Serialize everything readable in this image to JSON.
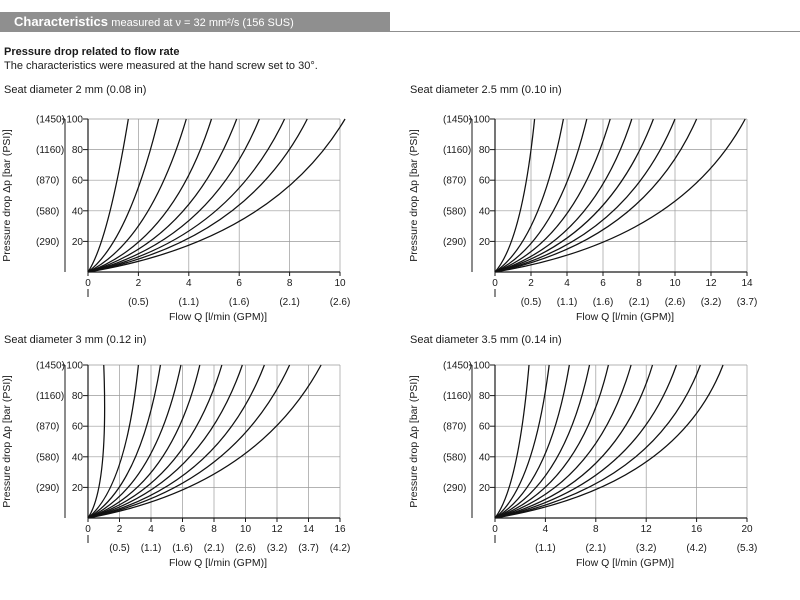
{
  "header": {
    "title": "Characteristics",
    "subtitle": "measured at ν = 32 mm²/s (156 SUS)"
  },
  "section": {
    "title": "Pressure drop related to flow rate",
    "description": "The characteristics were measured at the hand screw set to 30°."
  },
  "chart_data": [
    {
      "type": "line",
      "title": "Seat diameter 2 mm (0.08 in)",
      "xlabel": "Flow Q [l/min (GPM)]",
      "ylabel": "Pressure drop Δp [bar (PSI)]",
      "xlim": [
        0,
        10
      ],
      "ylim": [
        0,
        100
      ],
      "x_ticks": [
        0,
        2,
        4,
        6,
        8,
        10
      ],
      "x_gpm_ticks": [
        {
          "x": 2,
          "label": "(0.5)"
        },
        {
          "x": 4,
          "label": "(1.1)"
        },
        {
          "x": 6,
          "label": "(1.6)"
        },
        {
          "x": 8,
          "label": "(2.1)"
        },
        {
          "x": 10,
          "label": "(2.6)"
        }
      ],
      "y_ticks": [
        20,
        40,
        60,
        80,
        100
      ],
      "y_psi_labels": [
        "(290)",
        "(580)",
        "(870)",
        "(1160)",
        "(1450)"
      ],
      "grid": true,
      "series": [
        {
          "name": "curve 1",
          "x": [
            0,
            0.8,
            1.6
          ],
          "y": [
            0,
            35,
            100
          ]
        },
        {
          "name": "curve 2",
          "x": [
            0,
            1.5,
            2.8
          ],
          "y": [
            0,
            35,
            100
          ]
        },
        {
          "name": "curve 3",
          "x": [
            0,
            2.2,
            3.9
          ],
          "y": [
            0,
            35,
            100
          ]
        },
        {
          "name": "curve 4",
          "x": [
            0,
            2.9,
            4.9
          ],
          "y": [
            0,
            35,
            100
          ]
        },
        {
          "name": "curve 5",
          "x": [
            0,
            3.5,
            5.9
          ],
          "y": [
            0,
            35,
            100
          ]
        },
        {
          "name": "curve 6",
          "x": [
            0,
            4.1,
            6.8
          ],
          "y": [
            0,
            35,
            100
          ]
        },
        {
          "name": "curve 7",
          "x": [
            0,
            4.7,
            7.8
          ],
          "y": [
            0,
            35,
            100
          ]
        },
        {
          "name": "curve 8",
          "x": [
            0,
            5.3,
            8.7
          ],
          "y": [
            0,
            35,
            100
          ]
        },
        {
          "name": "curve 9",
          "x": [
            0,
            6.2,
            10.2
          ],
          "y": [
            0,
            35,
            100
          ]
        }
      ]
    },
    {
      "type": "line",
      "title": "Seat diameter 2.5 mm (0.10 in)",
      "xlabel": "Flow Q [l/min (GPM)]",
      "ylabel": "Pressure drop Δp [bar (PSI)]",
      "xlim": [
        0,
        14
      ],
      "ylim": [
        0,
        100
      ],
      "x_ticks": [
        0,
        2,
        4,
        6,
        8,
        10,
        12,
        14
      ],
      "x_gpm_ticks": [
        {
          "x": 2,
          "label": "(0.5)"
        },
        {
          "x": 4,
          "label": "(1.1)"
        },
        {
          "x": 6,
          "label": "(1.6)"
        },
        {
          "x": 8,
          "label": "(2.1)"
        },
        {
          "x": 10,
          "label": "(2.6)"
        },
        {
          "x": 12,
          "label": "(3.2)"
        },
        {
          "x": 14,
          "label": "(3.7)"
        }
      ],
      "y_ticks": [
        20,
        40,
        60,
        80,
        100
      ],
      "y_psi_labels": [
        "(290)",
        "(580)",
        "(870)",
        "(1160)",
        "(1450)"
      ],
      "grid": true,
      "series": [
        {
          "name": "curve 1",
          "x": [
            0,
            1.3,
            2.2
          ],
          "y": [
            0,
            35,
            100
          ]
        },
        {
          "name": "curve 2",
          "x": [
            0,
            2.2,
            3.8
          ],
          "y": [
            0,
            35,
            100
          ]
        },
        {
          "name": "curve 3",
          "x": [
            0,
            3.0,
            5.1
          ],
          "y": [
            0,
            35,
            100
          ]
        },
        {
          "name": "curve 4",
          "x": [
            0,
            3.8,
            6.4
          ],
          "y": [
            0,
            35,
            100
          ]
        },
        {
          "name": "curve 5",
          "x": [
            0,
            4.6,
            7.6
          ],
          "y": [
            0,
            35,
            100
          ]
        },
        {
          "name": "curve 6",
          "x": [
            0,
            5.3,
            8.8
          ],
          "y": [
            0,
            35,
            100
          ]
        },
        {
          "name": "curve 7",
          "x": [
            0,
            6.1,
            10.0
          ],
          "y": [
            0,
            35,
            100
          ]
        },
        {
          "name": "curve 8",
          "x": [
            0,
            6.9,
            11.2
          ],
          "y": [
            0,
            35,
            100
          ]
        },
        {
          "name": "curve 9",
          "x": [
            0,
            8.6,
            13.9
          ],
          "y": [
            0,
            35,
            100
          ]
        }
      ]
    },
    {
      "type": "line",
      "title": "Seat diameter 3 mm (0.12 in)",
      "xlabel": "Flow Q [l/min (GPM)]",
      "ylabel": "Pressure drop Δp [bar (PSI)]",
      "xlim": [
        0,
        16
      ],
      "ylim": [
        0,
        100
      ],
      "x_ticks": [
        0,
        2,
        4,
        6,
        8,
        10,
        12,
        14,
        16
      ],
      "x_gpm_ticks": [
        {
          "x": 2,
          "label": "(0.5)"
        },
        {
          "x": 4,
          "label": "(1.1)"
        },
        {
          "x": 6,
          "label": "(1.6)"
        },
        {
          "x": 8,
          "label": "(2.1)"
        },
        {
          "x": 10,
          "label": "(2.6)"
        },
        {
          "x": 12,
          "label": "(3.2)"
        },
        {
          "x": 14,
          "label": "(3.7)"
        },
        {
          "x": 16,
          "label": "(4.2)"
        }
      ],
      "y_ticks": [
        20,
        40,
        60,
        80,
        100
      ],
      "y_psi_labels": [
        "(290)",
        "(580)",
        "(870)",
        "(1160)",
        "(1450)"
      ],
      "grid": true,
      "series": [
        {
          "name": "curve 1",
          "x": [
            0,
            0.9,
            1.0
          ],
          "y": [
            0,
            35,
            100
          ]
        },
        {
          "name": "curve 2",
          "x": [
            0,
            2.0,
            3.2
          ],
          "y": [
            0,
            35,
            100
          ]
        },
        {
          "name": "curve 3",
          "x": [
            0,
            2.8,
            4.6
          ],
          "y": [
            0,
            35,
            100
          ]
        },
        {
          "name": "curve 4",
          "x": [
            0,
            3.6,
            5.9
          ],
          "y": [
            0,
            35,
            100
          ]
        },
        {
          "name": "curve 5",
          "x": [
            0,
            4.4,
            7.1
          ],
          "y": [
            0,
            35,
            100
          ]
        },
        {
          "name": "curve 6",
          "x": [
            0,
            5.2,
            8.5
          ],
          "y": [
            0,
            35,
            100
          ]
        },
        {
          "name": "curve 7",
          "x": [
            0,
            6.0,
            9.8
          ],
          "y": [
            0,
            35,
            100
          ]
        },
        {
          "name": "curve 8",
          "x": [
            0,
            6.9,
            11.2
          ],
          "y": [
            0,
            35,
            100
          ]
        },
        {
          "name": "curve 9",
          "x": [
            0,
            7.8,
            12.8
          ],
          "y": [
            0,
            35,
            100
          ]
        },
        {
          "name": "curve 10",
          "x": [
            0,
            9.0,
            14.8
          ],
          "y": [
            0,
            35,
            100
          ]
        }
      ]
    },
    {
      "type": "line",
      "title": "Seat diameter 3.5 mm (0.14 in)",
      "xlabel": "Flow Q [l/min (GPM)]",
      "ylabel": "Pressure drop Δp [bar (PSI)]",
      "xlim": [
        0,
        20
      ],
      "ylim": [
        0,
        100
      ],
      "x_ticks": [
        0,
        4,
        8,
        12,
        16,
        20
      ],
      "x_gpm_ticks": [
        {
          "x": 4,
          "label": "(1.1)"
        },
        {
          "x": 8,
          "label": "(2.1)"
        },
        {
          "x": 12,
          "label": "(3.2)"
        },
        {
          "x": 16,
          "label": "(4.2)"
        },
        {
          "x": 20,
          "label": "(5.3)"
        }
      ],
      "y_ticks": [
        20,
        40,
        60,
        80,
        100
      ],
      "y_psi_labels": [
        "(290)",
        "(580)",
        "(870)",
        "(1160)",
        "(1450)"
      ],
      "grid": true,
      "series": [
        {
          "name": "curve 1",
          "x": [
            0,
            1.6,
            2.7
          ],
          "y": [
            0,
            35,
            100
          ]
        },
        {
          "name": "curve 2",
          "x": [
            0,
            2.6,
            4.3
          ],
          "y": [
            0,
            35,
            100
          ]
        },
        {
          "name": "curve 3",
          "x": [
            0,
            3.6,
            5.9
          ],
          "y": [
            0,
            35,
            100
          ]
        },
        {
          "name": "curve 4",
          "x": [
            0,
            4.6,
            7.5
          ],
          "y": [
            0,
            35,
            100
          ]
        },
        {
          "name": "curve 5",
          "x": [
            0,
            5.6,
            9.0
          ],
          "y": [
            0,
            35,
            100
          ]
        },
        {
          "name": "curve 6",
          "x": [
            0,
            6.7,
            10.8
          ],
          "y": [
            0,
            35,
            100
          ]
        },
        {
          "name": "curve 7",
          "x": [
            0,
            7.9,
            12.5
          ],
          "y": [
            0,
            35,
            100
          ]
        },
        {
          "name": "curve 8",
          "x": [
            0,
            9.1,
            14.4
          ],
          "y": [
            0,
            35,
            100
          ]
        },
        {
          "name": "curve 9",
          "x": [
            0,
            10.4,
            16.3
          ],
          "y": [
            0,
            35,
            100
          ]
        },
        {
          "name": "curve 10",
          "x": [
            0,
            11.7,
            18.1
          ],
          "y": [
            0,
            35,
            100
          ]
        }
      ]
    }
  ]
}
